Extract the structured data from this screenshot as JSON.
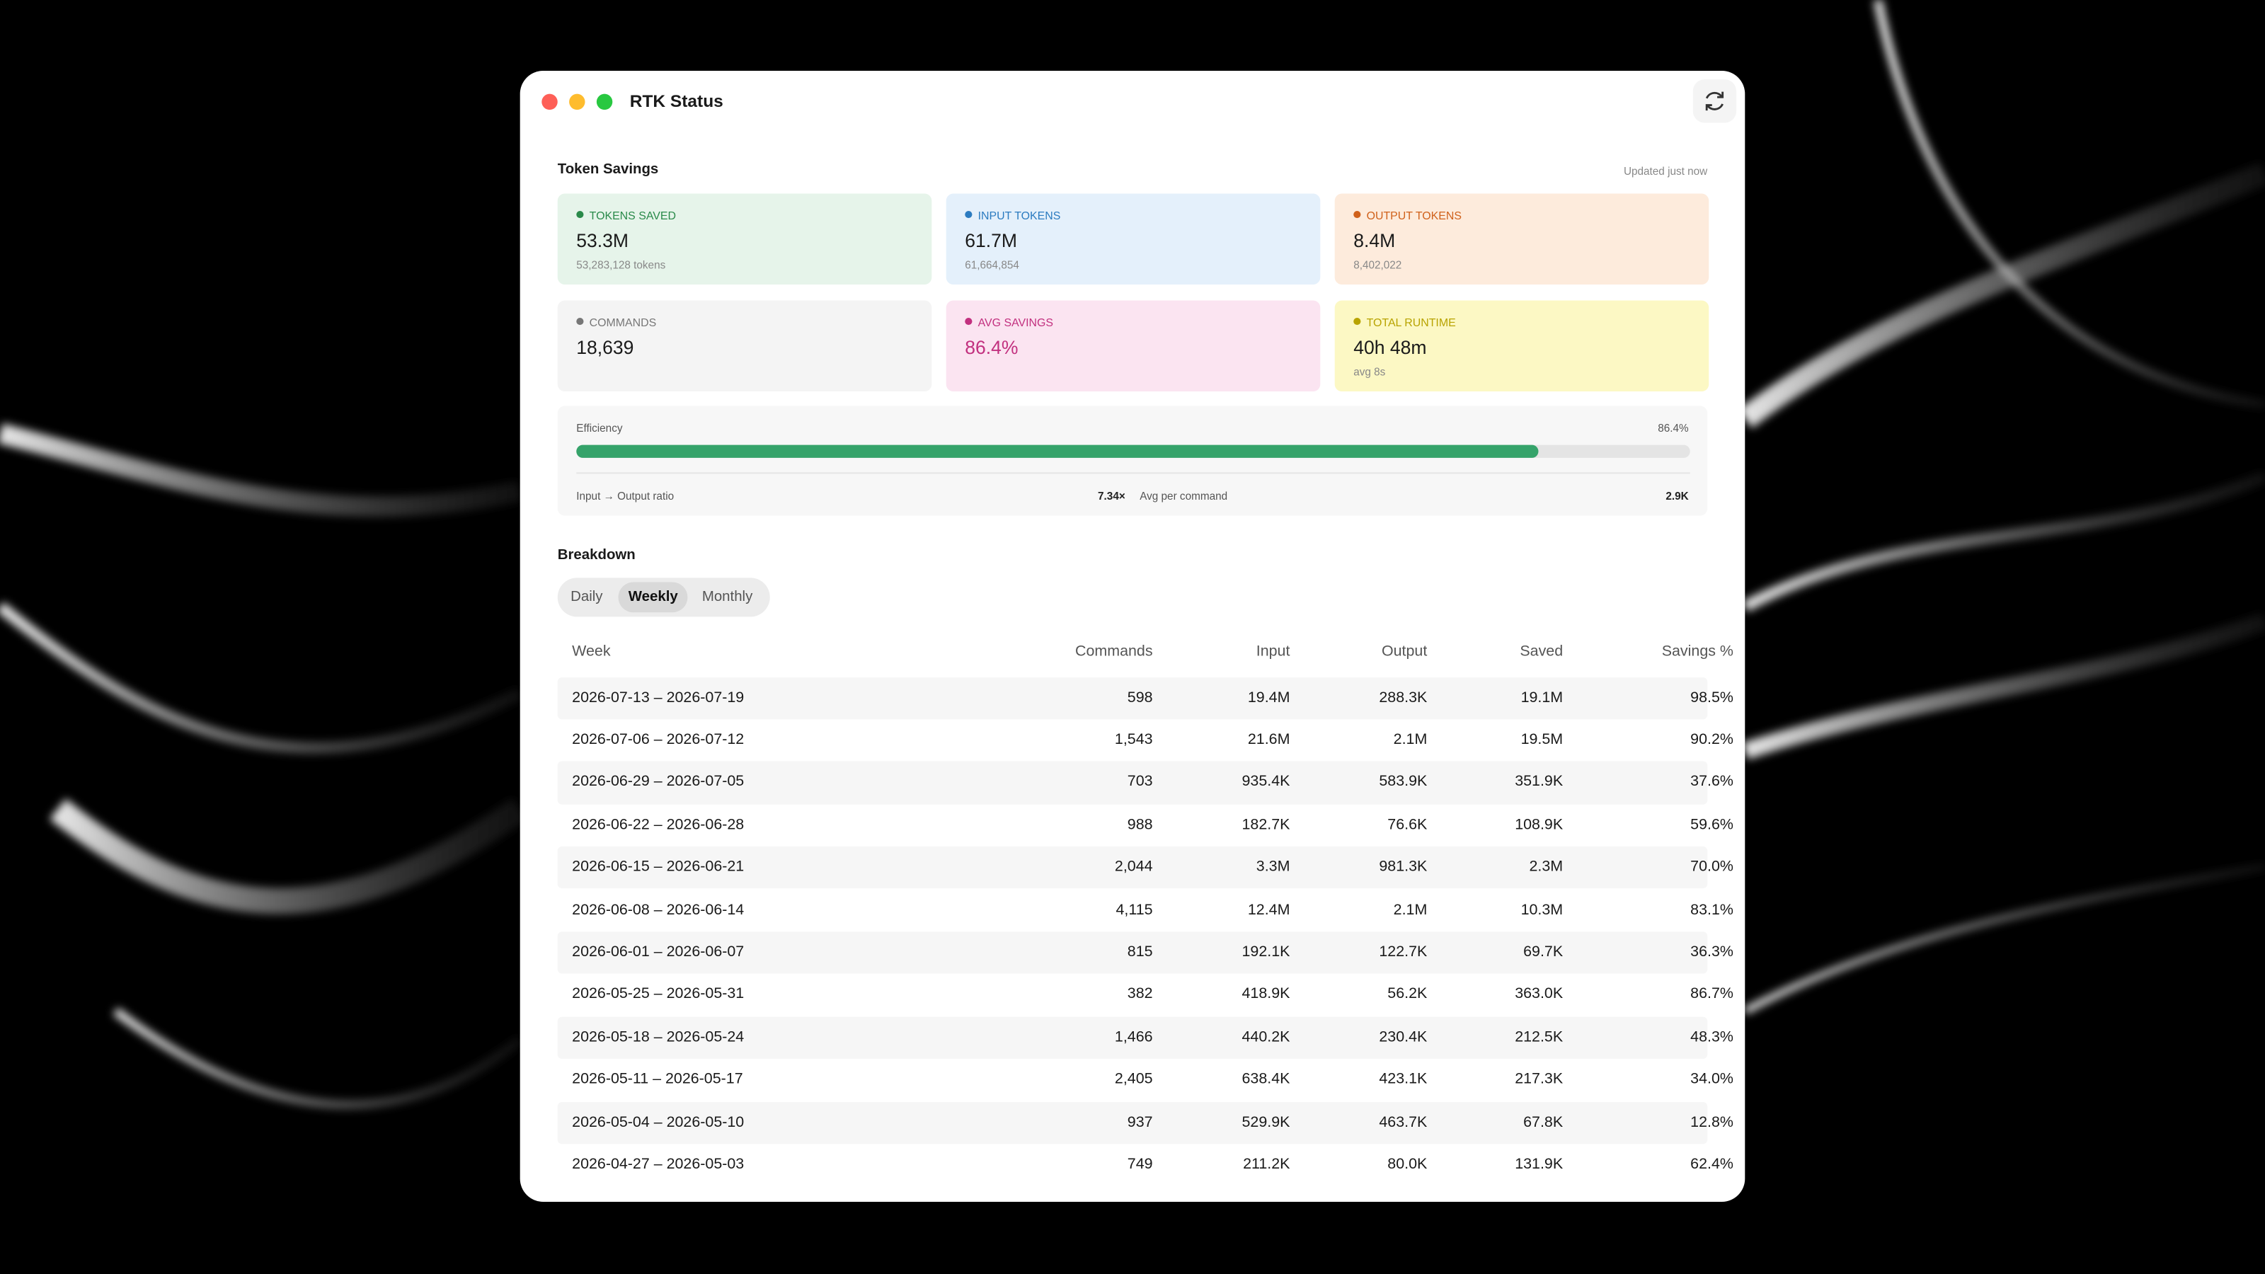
{
  "window": {
    "title": "RTK Status"
  },
  "token_savings": {
    "title": "Token Savings",
    "updated": "Updated just now",
    "cards": [
      {
        "label": "TOKENS SAVED",
        "value": "53.3M",
        "detail": "53,283,128 tokens"
      },
      {
        "label": "INPUT TOKENS",
        "value": "61.7M",
        "detail": "61,664,854"
      },
      {
        "label": "OUTPUT TOKENS",
        "value": "8.4M",
        "detail": "8,402,022"
      },
      {
        "label": "COMMANDS",
        "value": "18,639"
      },
      {
        "label": "AVG SAVINGS",
        "value": "86.4%"
      },
      {
        "label": "TOTAL RUNTIME",
        "value": "40h 48m",
        "detail": "avg 8s"
      }
    ],
    "efficiency": {
      "label": "Efficiency",
      "value": 86.4,
      "value_label": "86.4%",
      "ratio_label": "Input → Output ratio",
      "ratio": "7.34×",
      "avg_label": "Avg per command",
      "avg": "2.9K"
    }
  },
  "breakdown": {
    "title": "Breakdown",
    "tabs": [
      "Daily",
      "Weekly",
      "Monthly"
    ],
    "active_tab": 1,
    "table": {
      "columns": [
        "Week",
        "Commands",
        "Input",
        "Output",
        "Saved",
        "Savings %"
      ],
      "rows": [
        [
          "2026-07-13 – 2026-07-19",
          "598",
          "19.4M",
          "288.3K",
          "19.1M",
          "98.5%"
        ],
        [
          "2026-07-06 – 2026-07-12",
          "1,543",
          "21.6M",
          "2.1M",
          "19.5M",
          "90.2%"
        ],
        [
          "2026-06-29 – 2026-07-05",
          "703",
          "935.4K",
          "583.9K",
          "351.9K",
          "37.6%"
        ],
        [
          "2026-06-22 – 2026-06-28",
          "988",
          "182.7K",
          "76.6K",
          "108.9K",
          "59.6%"
        ],
        [
          "2026-06-15 – 2026-06-21",
          "2,044",
          "3.3M",
          "981.3K",
          "2.3M",
          "70.0%"
        ],
        [
          "2026-06-08 – 2026-06-14",
          "4,115",
          "12.4M",
          "2.1M",
          "10.3M",
          "83.1%"
        ],
        [
          "2026-06-01 – 2026-06-07",
          "815",
          "192.1K",
          "122.7K",
          "69.7K",
          "36.3%"
        ],
        [
          "2026-05-25 – 2026-05-31",
          "382",
          "418.9K",
          "56.2K",
          "363.0K",
          "86.7%"
        ],
        [
          "2026-05-18 – 2026-05-24",
          "1,466",
          "440.2K",
          "230.4K",
          "212.5K",
          "48.3%"
        ],
        [
          "2026-05-11 – 2026-05-17",
          "2,405",
          "638.4K",
          "423.1K",
          "217.3K",
          "34.0%"
        ],
        [
          "2026-05-04 – 2026-05-10",
          "937",
          "529.9K",
          "463.7K",
          "67.8K",
          "12.8%"
        ],
        [
          "2026-04-27 – 2026-05-03",
          "749",
          "211.2K",
          "80.0K",
          "131.9K",
          "62.4%"
        ]
      ]
    }
  }
}
